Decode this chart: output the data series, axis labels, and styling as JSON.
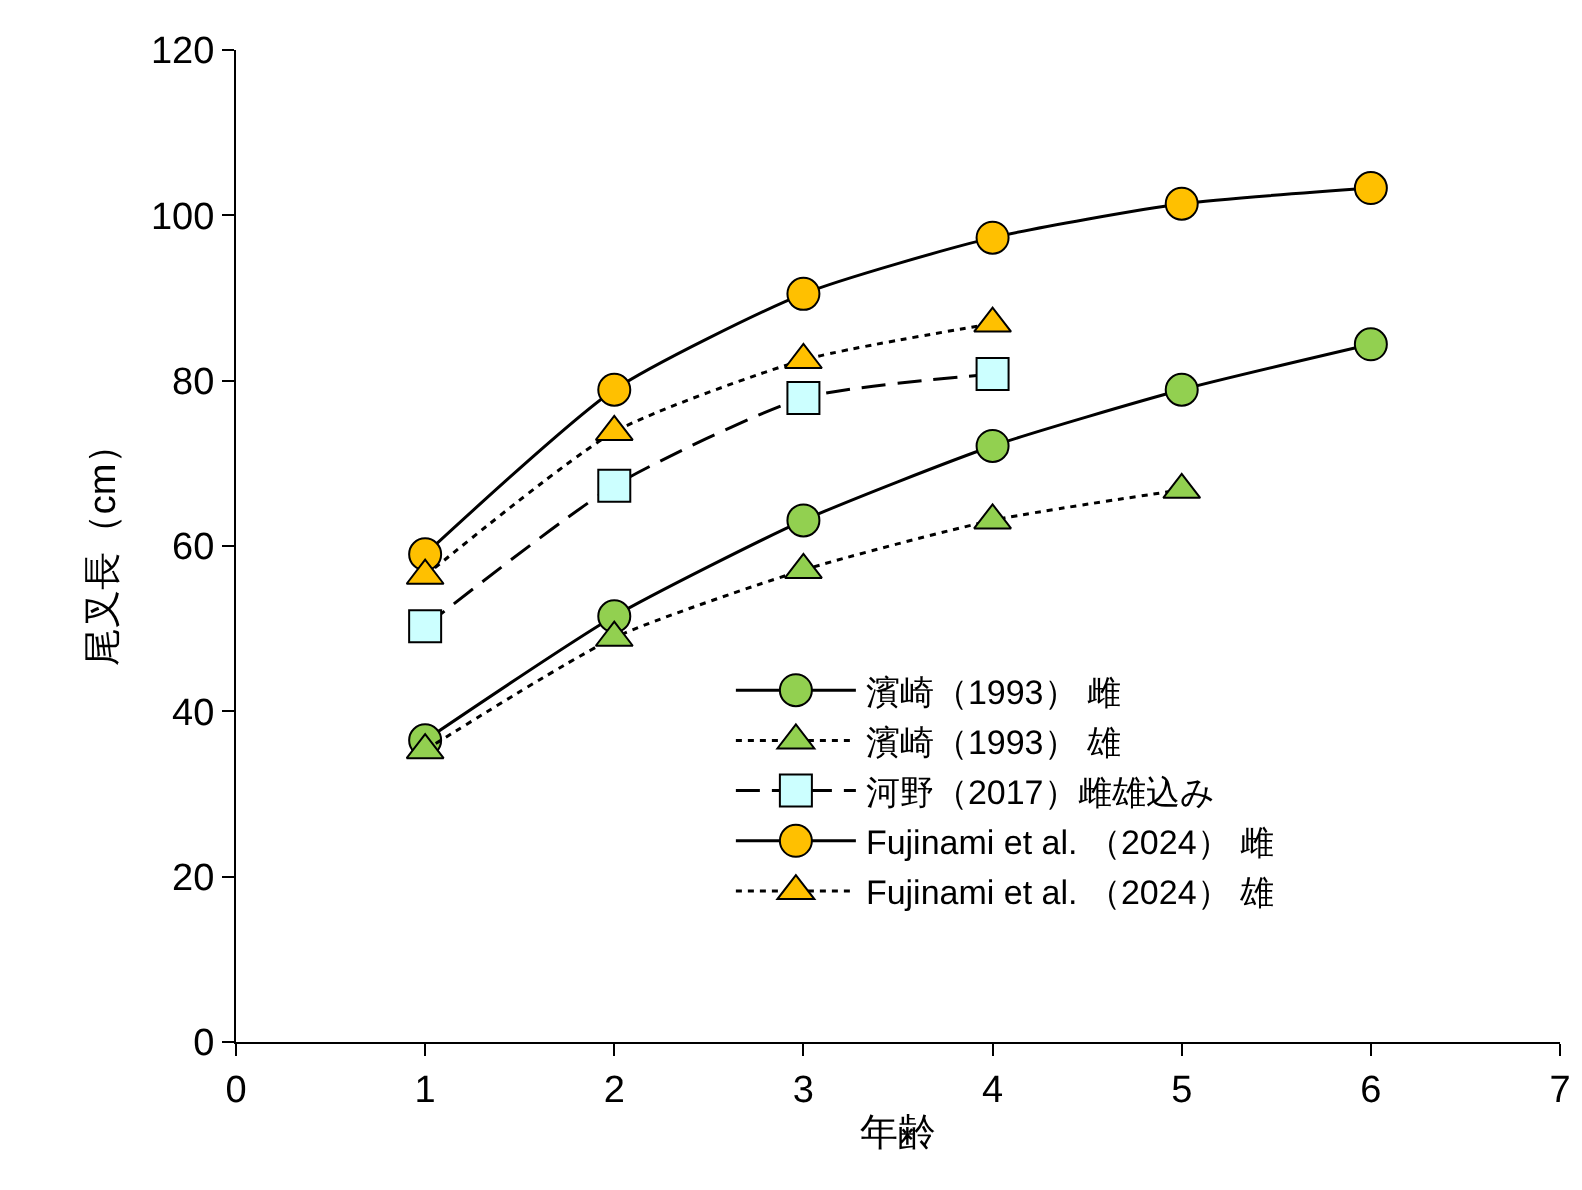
{
  "chart_data": {
    "type": "line",
    "xlabel": "年齢",
    "ylabel": "尾叉長（cm）",
    "x": [
      1,
      2,
      3,
      4,
      5,
      6
    ],
    "xlim": [
      0,
      7
    ],
    "xticks": [
      0,
      1,
      2,
      3,
      4,
      5,
      6,
      7
    ],
    "ylim": [
      0,
      120
    ],
    "yticks": [
      0,
      20,
      40,
      60,
      80,
      100,
      120
    ],
    "legend": "bottom right",
    "series": [
      {
        "name": "濱崎（1993） 雌",
        "color": "#92d050",
        "marker": "circle",
        "line_style": "solid",
        "values": [
          36.5,
          51.5,
          63.1,
          72.1,
          78.9,
          84.4
        ]
      },
      {
        "name": "濱崎（1993） 雄",
        "color": "#92d050",
        "marker": "triangle",
        "line_style": "dotted",
        "values": [
          35.3,
          48.9,
          57.1,
          63.1,
          66.8,
          null
        ]
      },
      {
        "name": "河野（2017）雌雄込み",
        "color": "#ccffff",
        "marker": "square",
        "line_style": "dashed",
        "values": [
          50.3,
          67.3,
          77.9,
          80.8,
          null,
          null
        ]
      },
      {
        "name": "Fujinami et al. （2024） 雌",
        "color": "#ffc000",
        "marker": "circle",
        "line_style": "solid",
        "values": [
          59.0,
          78.9,
          90.5,
          97.3,
          101.4,
          103.3
        ]
      },
      {
        "name": "Fujinami et al. （2024） 雄",
        "color": "#ffc000",
        "marker": "triangle",
        "line_style": "dotted",
        "values": [
          56.4,
          73.8,
          82.5,
          86.9,
          null,
          null
        ]
      }
    ]
  }
}
